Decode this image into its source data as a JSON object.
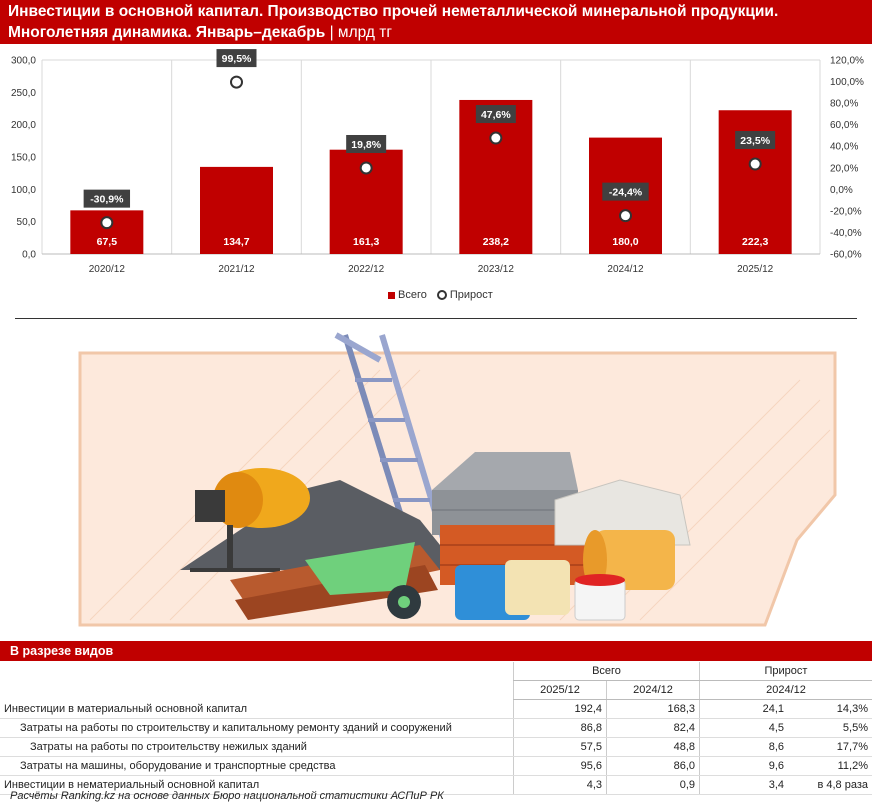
{
  "header": {
    "title_line1": "Инвестиции в основной капитал. Производство прочей неметаллической минеральной продукции.",
    "title_line2": "Многолетняя динамика. Январь–декабрь",
    "unit": " | млрд тг"
  },
  "chart_data": {
    "type": "bar",
    "categories": [
      "2020/12",
      "2021/12",
      "2022/12",
      "2023/12",
      "2024/12",
      "2025/12"
    ],
    "series": [
      {
        "name": "Всего",
        "type": "bar",
        "axis": "left",
        "values": [
          67.5,
          134.7,
          161.3,
          238.2,
          180.0,
          222.3
        ],
        "labels": [
          "67,5",
          "134,7",
          "161,3",
          "238,2",
          "180,0",
          "222,3"
        ]
      },
      {
        "name": "Прирост",
        "type": "scatter",
        "axis": "right",
        "values": [
          -30.9,
          99.5,
          19.8,
          47.6,
          -24.4,
          23.5
        ],
        "labels": [
          "-30,9%",
          "99,5%",
          "19,8%",
          "47,6%",
          "-24,4%",
          "23,5%"
        ]
      }
    ],
    "left_axis": {
      "min": 0,
      "max": 300,
      "ticks": [
        "0,0",
        "50,0",
        "100,0",
        "150,0",
        "200,0",
        "250,0",
        "300,0"
      ]
    },
    "right_axis": {
      "min": -60,
      "max": 120,
      "ticks": [
        "-60,0%",
        "-40,0%",
        "-20,0%",
        "0,0%",
        "20,0%",
        "40,0%",
        "60,0%",
        "80,0%",
        "100,0%",
        "120,0%"
      ]
    },
    "legend_position": "bottom",
    "grid": true
  },
  "legend": {
    "bar": "Всего",
    "dot": "Прирост"
  },
  "colors": {
    "accent": "#c00000",
    "grid": "#d9d9d9",
    "illustration_bg": "#fde9dc"
  },
  "illustration": {
    "subject": "construction-materials-illustration"
  },
  "section": {
    "title": "В разрезе видов"
  },
  "table": {
    "group_headers": [
      "Всего",
      "Прирост"
    ],
    "sub_headers": [
      "2025/12",
      "2024/12",
      "2024/12"
    ],
    "rows": [
      {
        "label": "Инвестиции в материальный основной капитал",
        "v2025": "192,4",
        "v2024": "168,3",
        "abs": "24,1",
        "pct": "14,3%"
      },
      {
        "label": "Затраты на работы по строительству и капитальному ремонту зданий и сооружений",
        "v2025": "86,8",
        "v2024": "82,4",
        "abs": "4,5",
        "pct": "5,5%"
      },
      {
        "label": "Затраты на работы по строительству нежилых зданий",
        "v2025": "57,5",
        "v2024": "48,8",
        "abs": "8,6",
        "pct": "17,7%"
      },
      {
        "label": "Затраты на машины, оборудование и транспортные средства",
        "v2025": "95,6",
        "v2024": "86,0",
        "abs": "9,6",
        "pct": "11,2%"
      },
      {
        "label": "Инвестиции в нематериальный основной капитал",
        "v2025": "4,3",
        "v2024": "0,9",
        "abs": "3,4",
        "pct": "в 4,8 раза"
      }
    ]
  },
  "footer": {
    "source": "Расчёты Ranking.kz на основе данных Бюро национальной статистики АСПиР РК"
  }
}
